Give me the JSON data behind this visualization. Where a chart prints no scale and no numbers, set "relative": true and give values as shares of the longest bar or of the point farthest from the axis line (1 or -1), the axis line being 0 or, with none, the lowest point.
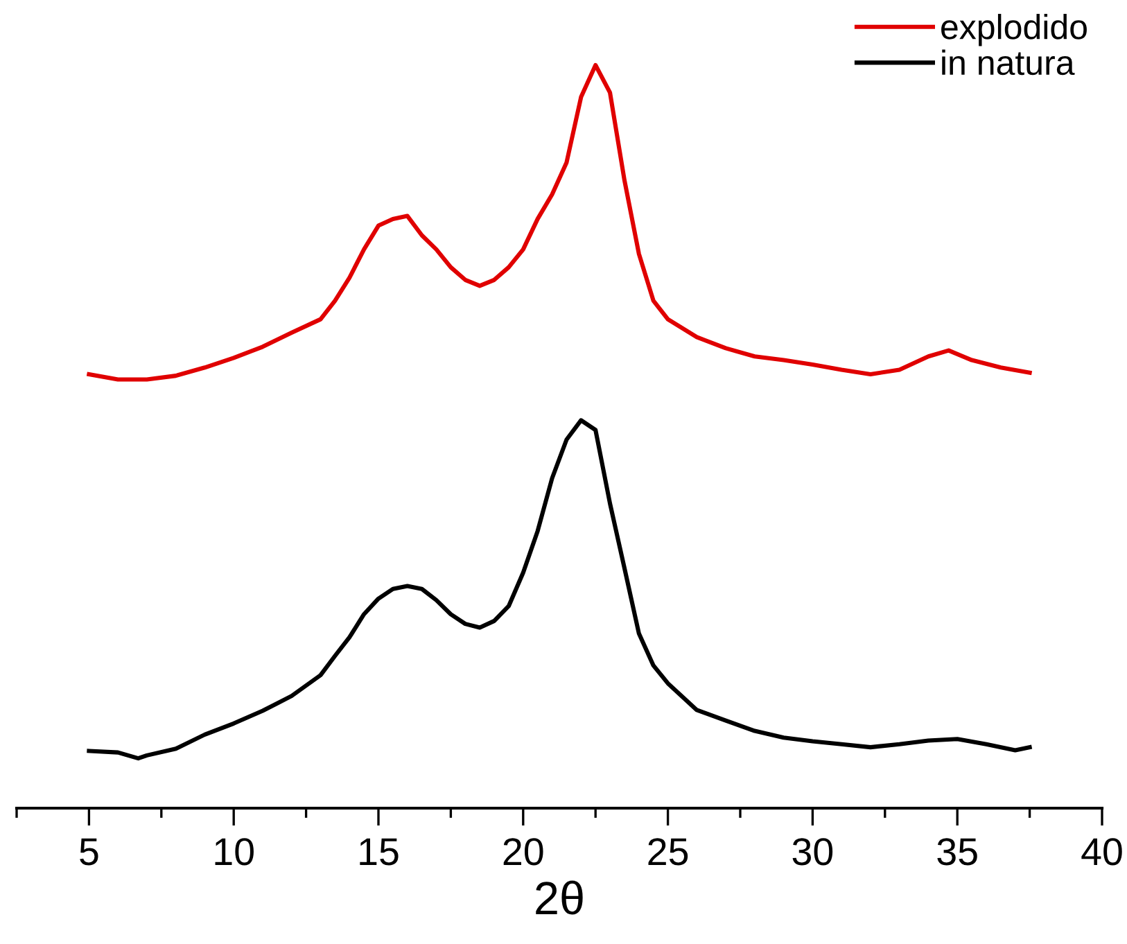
{
  "chart_data": {
    "type": "line",
    "xlabel": "2θ",
    "relative": true,
    "legend": "top right",
    "tick_labels": "x",
    "grid": false,
    "marker": "none",
    "line_style": "solid",
    "xlim": [
      2.5,
      40
    ],
    "xticks": [
      {
        "value": 2.5,
        "label": null
      },
      5,
      {
        "value": 7.5,
        "label": null
      },
      10,
      {
        "value": 12.5,
        "label": null
      },
      15,
      {
        "value": 17.5,
        "label": null
      },
      20,
      {
        "value": 22.5,
        "label": null
      },
      25,
      {
        "value": 27.5,
        "label": null
      },
      30,
      {
        "value": 32.5,
        "label": null
      },
      35,
      {
        "value": 37.5,
        "label": null
      },
      40
    ],
    "series": [
      {
        "name": "explodido",
        "color": "#e00000",
        "x": [
          5,
          6,
          7,
          8,
          9,
          10,
          11,
          12,
          13,
          13.5,
          14,
          14.5,
          15,
          15.5,
          16,
          16.5,
          17,
          17.5,
          18,
          18.5,
          19,
          19.5,
          20,
          20.5,
          21,
          21.5,
          22,
          22.5,
          23,
          23.5,
          24,
          24.5,
          25,
          26,
          27,
          28,
          29,
          30,
          31,
          32,
          33,
          34,
          34.7,
          35.5,
          36.5,
          37.5
        ],
        "values": [
          0.584,
          0.577,
          0.577,
          0.582,
          0.593,
          0.606,
          0.621,
          0.64,
          0.658,
          0.683,
          0.714,
          0.752,
          0.784,
          0.793,
          0.797,
          0.771,
          0.752,
          0.728,
          0.711,
          0.703,
          0.711,
          0.728,
          0.752,
          0.793,
          0.826,
          0.869,
          0.957,
          1.0,
          0.963,
          0.845,
          0.746,
          0.683,
          0.658,
          0.634,
          0.619,
          0.608,
          0.603,
          0.597,
          0.59,
          0.584,
          0.59,
          0.608,
          0.616,
          0.603,
          0.593,
          0.586
        ]
      },
      {
        "name": "in natura",
        "color": "#000000",
        "x": [
          5,
          6,
          6.7,
          7,
          8,
          9,
          10,
          11,
          12,
          13,
          13.5,
          14,
          14.5,
          15,
          15.5,
          16,
          16.5,
          17,
          17.5,
          18,
          18.5,
          19,
          19.5,
          20,
          20.5,
          21,
          21.5,
          22,
          22.5,
          23,
          23.5,
          24,
          24.5,
          25,
          26,
          27,
          28,
          29,
          30,
          31,
          32,
          33,
          34,
          35,
          36,
          37,
          37.5
        ],
        "values": [
          0.077,
          0.075,
          0.067,
          0.071,
          0.08,
          0.099,
          0.114,
          0.131,
          0.151,
          0.179,
          0.205,
          0.23,
          0.261,
          0.282,
          0.295,
          0.299,
          0.295,
          0.28,
          0.261,
          0.248,
          0.243,
          0.252,
          0.272,
          0.317,
          0.373,
          0.444,
          0.496,
          0.522,
          0.509,
          0.41,
          0.323,
          0.235,
          0.192,
          0.168,
          0.132,
          0.118,
          0.104,
          0.095,
          0.09,
          0.086,
          0.082,
          0.086,
          0.091,
          0.093,
          0.086,
          0.078,
          0.082
        ]
      }
    ]
  }
}
